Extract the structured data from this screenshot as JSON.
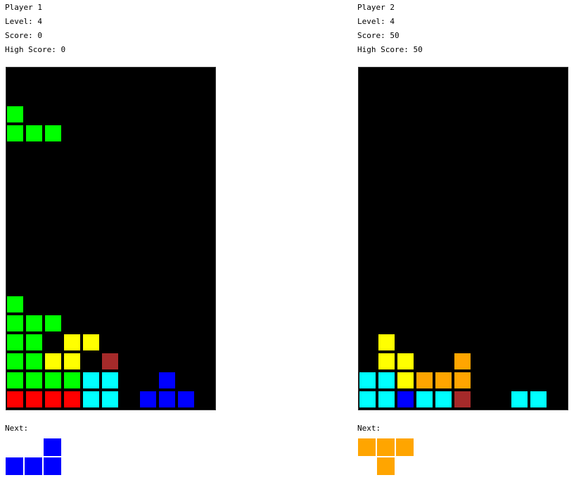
{
  "colors": {
    "I": "#00ffff",
    "O": "#ffff00",
    "L": "#00ff00",
    "J": "#0000ff",
    "Z": "#ff0000",
    "T": "#ffa500",
    "S": "#a52a2a"
  },
  "players": [
    {
      "title": "Player 1",
      "level": "Level: 4",
      "score": "Score: 0",
      "high_score": "High Score: 0",
      "next_label": "Next:",
      "active_piece": {
        "type": "L",
        "cells": [
          [
            0,
            2
          ],
          [
            0,
            3
          ],
          [
            1,
            3
          ],
          [
            2,
            3
          ]
        ]
      },
      "board": [
        "..........",
        "..........",
        "..........",
        "..........",
        "..........",
        "..........",
        "..........",
        "..........",
        "..........",
        "..........",
        "..........",
        "..........",
        "L.........",
        "LLL.......",
        "LL.OO.....",
        "LLOO.S....",
        "LLLLII..J.",
        "ZZZZII.JJJ"
      ],
      "next_piece": {
        "type": "J",
        "cells": [
          [
            2,
            0
          ],
          [
            0,
            1
          ],
          [
            1,
            1
          ],
          [
            2,
            1
          ]
        ]
      }
    },
    {
      "title": "Player 2",
      "level": "Level: 4",
      "score": "Score: 50",
      "high_score": "High Score: 50",
      "next_label": "Next:",
      "active_piece": null,
      "board": [
        "..........",
        "..........",
        "..........",
        "..........",
        "..........",
        "..........",
        "..........",
        "..........",
        "..........",
        "..........",
        "..........",
        "..........",
        "..........",
        "..........",
        ".O........",
        ".OO..T....",
        "IIOTTT....",
        "IIJIIS..II"
      ],
      "next_piece": {
        "type": "T",
        "cells": [
          [
            0,
            0
          ],
          [
            1,
            0
          ],
          [
            2,
            0
          ],
          [
            1,
            1
          ]
        ]
      }
    }
  ]
}
